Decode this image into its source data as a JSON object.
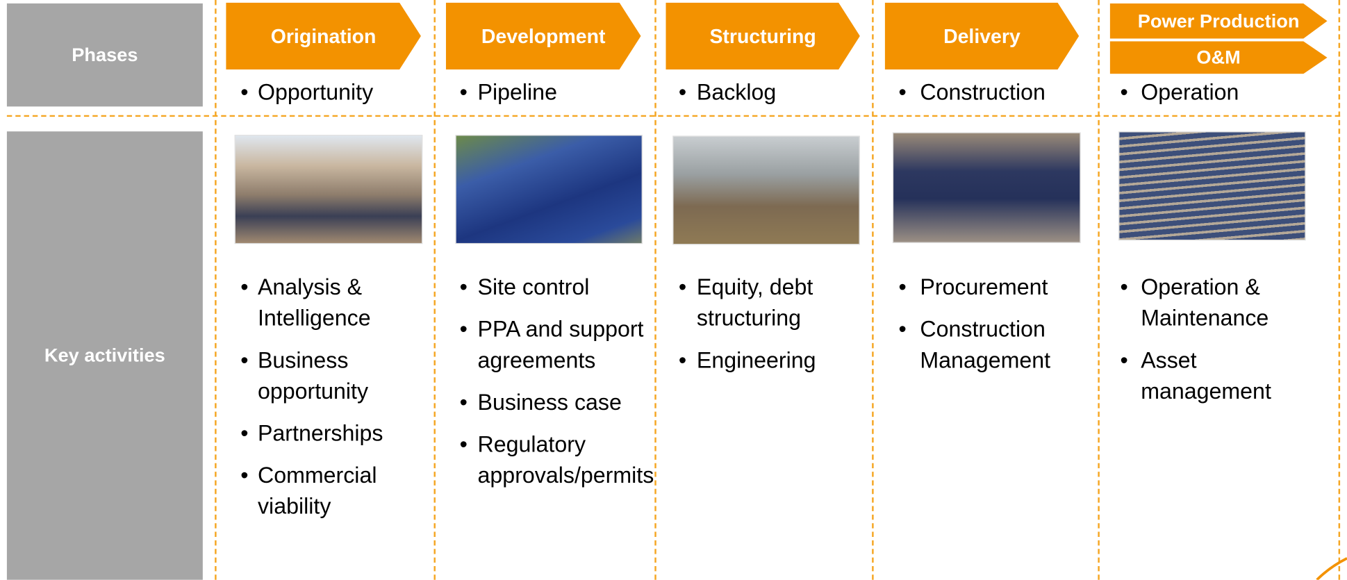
{
  "labels": {
    "phases": "Phases",
    "activities": "Key activities"
  },
  "phases": [
    {
      "title": "Origination",
      "stage": "Opportunity",
      "activities": [
        "Analysis & Intelligence",
        "Business opportunity",
        "Partnerships",
        "Commercial viability"
      ]
    },
    {
      "title": "Development",
      "stage": "Pipeline",
      "activities": [
        "Site control",
        "PPA and support agreements",
        "Business case",
        "Regulatory approvals/permits"
      ]
    },
    {
      "title": "Structuring",
      "stage": "Backlog",
      "activities": [
        "Equity, debt structuring",
        "Engineering"
      ]
    },
    {
      "title": "Delivery",
      "stage": "Construction",
      "activities": [
        "Procurement",
        "Construction Management"
      ]
    },
    {
      "title": "Power Production",
      "subtitle": "O&M",
      "stage": "Operation",
      "activities": [
        "Operation & Maintenance",
        "Asset management"
      ]
    }
  ]
}
